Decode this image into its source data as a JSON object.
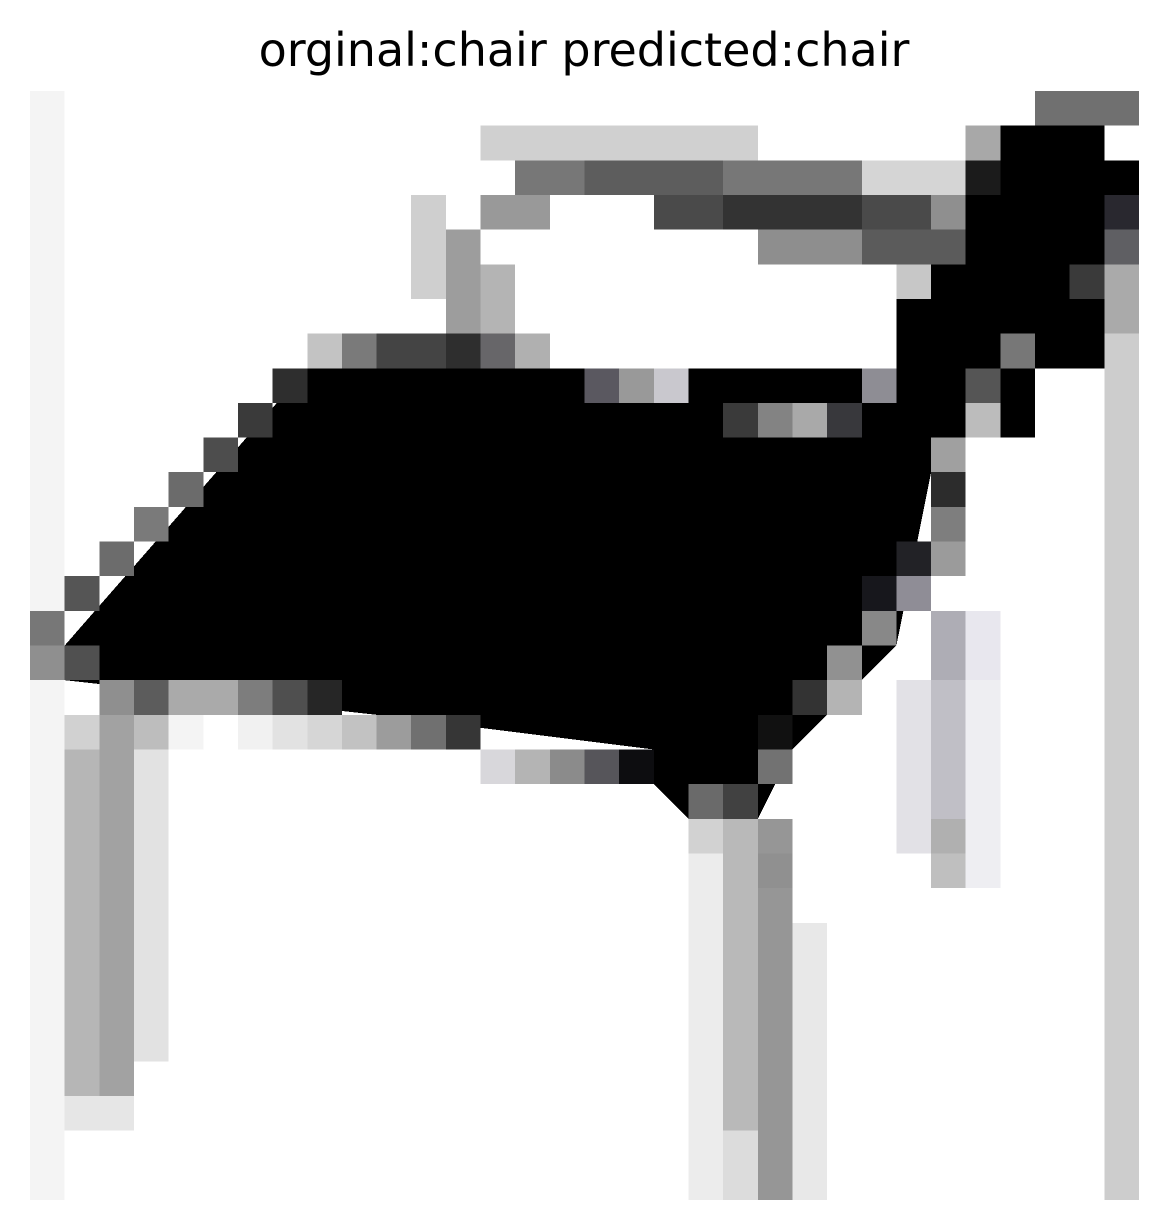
{
  "figure": {
    "title": "orginal:chair predicted:chair",
    "label_original": "chair",
    "label_predicted": "chair",
    "image_kind": "grayscale low-resolution sketch",
    "image_subject": "chair sketch",
    "palette": {
      "background": "#ffffff",
      "ink": "#000000",
      "light_gray": "#d8d8d8",
      "mid_gray": "#9a9a9a",
      "dark_gray": "#4a4a4a"
    }
  }
}
